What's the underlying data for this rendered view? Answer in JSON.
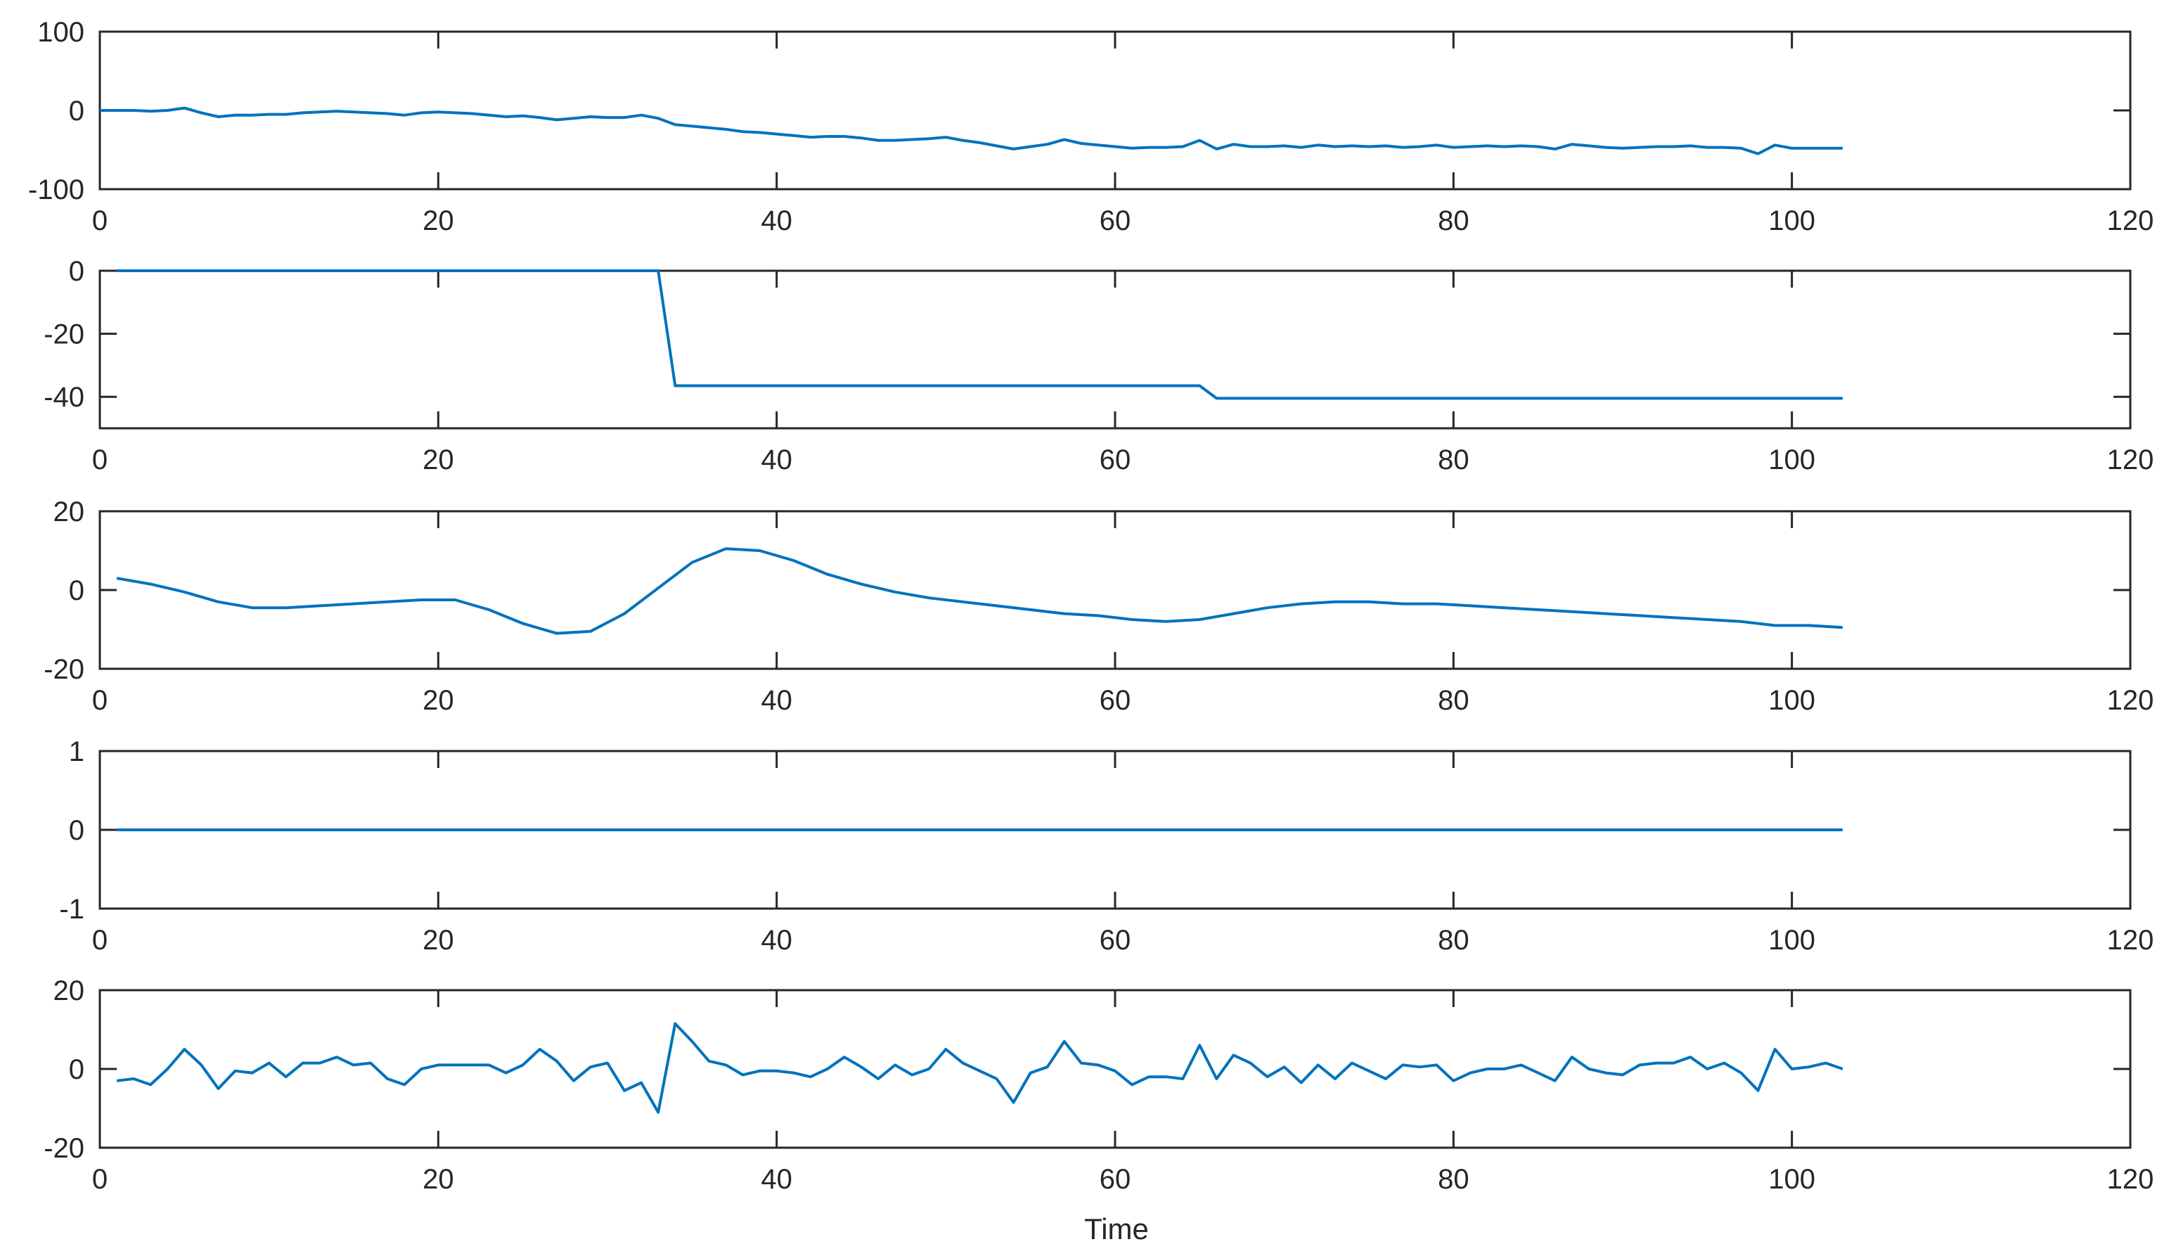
{
  "chart_data": [
    {
      "type": "line",
      "xlim": [
        0,
        120
      ],
      "ylim": [
        -100,
        100
      ],
      "xticks": [
        "0",
        "20",
        "40",
        "60",
        "80",
        "100",
        "120"
      ],
      "yticks": [
        "-100",
        "0",
        "100"
      ],
      "color": "#0072BD",
      "series": [
        {
          "x": [
            0,
            1,
            2,
            3,
            4,
            5,
            6,
            7,
            8,
            9,
            10,
            11,
            12,
            13,
            14,
            15,
            16,
            17,
            18,
            19,
            20,
            21,
            22,
            23,
            24,
            25,
            26,
            27,
            28,
            29,
            30,
            31,
            32,
            33,
            34,
            35,
            36,
            37,
            38,
            39,
            40,
            41,
            42,
            43,
            44,
            45,
            46,
            47,
            48,
            49,
            50,
            51,
            52,
            53,
            54,
            55,
            56,
            57,
            58,
            59,
            60,
            61,
            62,
            63,
            64,
            65,
            66,
            67,
            68,
            69,
            70,
            71,
            72,
            73,
            74,
            75,
            76,
            77,
            78,
            79,
            80,
            81,
            82,
            83,
            84,
            85,
            86,
            87,
            88,
            89,
            90,
            91,
            92,
            93,
            94,
            95,
            96,
            97,
            98,
            99,
            100,
            101,
            102,
            103
          ],
          "values": [
            0,
            0,
            0,
            -1,
            0,
            3,
            -3,
            -8,
            -6,
            -6,
            -5,
            -5,
            -3,
            -2,
            -1,
            -2,
            -3,
            -4,
            -6,
            -3,
            -2,
            -3,
            -4,
            -6,
            -8,
            -7,
            -9,
            -12,
            -10,
            -8,
            -9,
            -9,
            -6,
            -10,
            -18,
            -20,
            -22,
            -24,
            -27,
            -28,
            -30,
            -32,
            -34,
            -33,
            -33,
            -35,
            -38,
            -38,
            -37,
            -36,
            -34,
            -38,
            -41,
            -45,
            -49,
            -46,
            -43,
            -37,
            -42,
            -44,
            -46,
            -48,
            -47,
            -47,
            -46,
            -38,
            -49,
            -43,
            -46,
            -46,
            -45,
            -47,
            -44,
            -46,
            -45,
            -46,
            -45,
            -47,
            -46,
            -44,
            -47,
            -46,
            -45,
            -46,
            -45,
            -46,
            -49,
            -43,
            -45,
            -47,
            -48,
            -47,
            -46,
            -46,
            -45,
            -47,
            -47,
            -48,
            -55,
            -44,
            -48,
            -48,
            -48,
            -48
          ]
        }
      ]
    },
    {
      "type": "line",
      "xlim": [
        0,
        120
      ],
      "ylim": [
        -50,
        0
      ],
      "xticks": [
        "0",
        "20",
        "40",
        "60",
        "80",
        "100",
        "120"
      ],
      "yticks": [
        "0",
        "-20",
        "-40"
      ],
      "ytick_values": [
        0,
        -20,
        -40
      ],
      "color": "#0072BD",
      "series": [
        {
          "x": [
            1,
            33,
            34,
            65,
            66,
            103
          ],
          "values": [
            0,
            0,
            -36.5,
            -36.5,
            -40.5,
            -40.5
          ]
        }
      ]
    },
    {
      "type": "line",
      "xlim": [
        0,
        120
      ],
      "ylim": [
        -20,
        20
      ],
      "xticks": [
        "0",
        "20",
        "40",
        "60",
        "80",
        "100",
        "120"
      ],
      "yticks": [
        "20",
        "0",
        "-20"
      ],
      "ytick_values": [
        20,
        0,
        -20
      ],
      "color": "#0072BD",
      "series": [
        {
          "x": [
            1,
            3,
            5,
            7,
            9,
            11,
            13,
            15,
            17,
            19,
            21,
            23,
            25,
            27,
            29,
            31,
            33,
            35,
            37,
            39,
            41,
            43,
            45,
            47,
            49,
            51,
            53,
            55,
            57,
            59,
            61,
            63,
            65,
            67,
            69,
            71,
            73,
            75,
            77,
            79,
            81,
            83,
            85,
            87,
            89,
            91,
            93,
            95,
            97,
            99,
            101,
            103
          ],
          "values": [
            3,
            1.5,
            -0.5,
            -3,
            -4.5,
            -4.5,
            -4,
            -3.5,
            -3,
            -2.5,
            -2.5,
            -5,
            -8.5,
            -11,
            -10.5,
            -6,
            0.5,
            7,
            10.5,
            10,
            7.5,
            4,
            1.5,
            -0.5,
            -2,
            -3,
            -4,
            -5,
            -6,
            -6.5,
            -7.5,
            -8,
            -7.5,
            -6,
            -4.5,
            -3.5,
            -3,
            -3,
            -3.5,
            -3.5,
            -4,
            -4.5,
            -5,
            -5.5,
            -6,
            -6.5,
            -7,
            -7.5,
            -8,
            -9,
            -9,
            -9.5
          ]
        }
      ]
    },
    {
      "type": "line",
      "xlim": [
        0,
        120
      ],
      "ylim": [
        -1,
        1
      ],
      "xticks": [
        "0",
        "20",
        "40",
        "60",
        "80",
        "100",
        "120"
      ],
      "yticks": [
        "1",
        "0",
        "-1"
      ],
      "ytick_values": [
        1,
        0,
        -1
      ],
      "color": "#0072BD",
      "series": [
        {
          "x": [
            1,
            103
          ],
          "values": [
            0,
            0
          ]
        }
      ]
    },
    {
      "type": "line",
      "xlim": [
        0,
        120
      ],
      "ylim": [
        -20,
        20
      ],
      "xticks": [
        "0",
        "20",
        "40",
        "60",
        "80",
        "100",
        "120"
      ],
      "yticks": [
        "20",
        "0",
        "-20"
      ],
      "ytick_values": [
        20,
        0,
        -20
      ],
      "xlabel": "Time",
      "color": "#0072BD",
      "series": [
        {
          "x": [
            1,
            2,
            3,
            4,
            5,
            6,
            7,
            8,
            9,
            10,
            11,
            12,
            13,
            14,
            15,
            16,
            17,
            18,
            19,
            20,
            21,
            22,
            23,
            24,
            25,
            26,
            27,
            28,
            29,
            30,
            31,
            32,
            33,
            34,
            35,
            36,
            37,
            38,
            39,
            40,
            41,
            42,
            43,
            44,
            45,
            46,
            47,
            48,
            49,
            50,
            51,
            52,
            53,
            54,
            55,
            56,
            57,
            58,
            59,
            60,
            61,
            62,
            63,
            64,
            65,
            66,
            67,
            68,
            69,
            70,
            71,
            72,
            73,
            74,
            75,
            76,
            77,
            78,
            79,
            80,
            81,
            82,
            83,
            84,
            85,
            86,
            87,
            88,
            89,
            90,
            91,
            92,
            93,
            94,
            95,
            96,
            97,
            98,
            99,
            100,
            101,
            102,
            103
          ],
          "values": [
            -3,
            -2.5,
            -4,
            0,
            5,
            1,
            -5,
            -0.5,
            -1,
            1.5,
            -2,
            1.5,
            1.5,
            3,
            1,
            1.5,
            -2.5,
            -4,
            0,
            1,
            1,
            1,
            1,
            -1,
            1,
            5,
            2,
            -3,
            0.5,
            1.5,
            -5.5,
            -3.5,
            -11,
            11.5,
            7,
            2,
            1,
            -1.5,
            -0.5,
            -0.5,
            -1,
            -2,
            0,
            3,
            0.5,
            -2.5,
            1,
            -1.5,
            0,
            5,
            1.5,
            -0.5,
            -2.5,
            -8.5,
            -1,
            0.5,
            7,
            1.5,
            1,
            -0.5,
            -4,
            -2,
            -2,
            -2.5,
            6,
            -2.5,
            3.5,
            1.5,
            -2,
            0.5,
            -3.5,
            1,
            -2.5,
            1.5,
            -0.5,
            -2.5,
            1,
            0.5,
            1,
            -3,
            -1,
            0,
            0,
            1,
            -1,
            -3,
            3,
            0,
            -1,
            -1.5,
            1,
            1.5,
            1.5,
            3,
            0,
            1.5,
            -1,
            -5.5,
            5,
            0,
            0.5,
            1.5,
            0
          ]
        }
      ]
    }
  ]
}
